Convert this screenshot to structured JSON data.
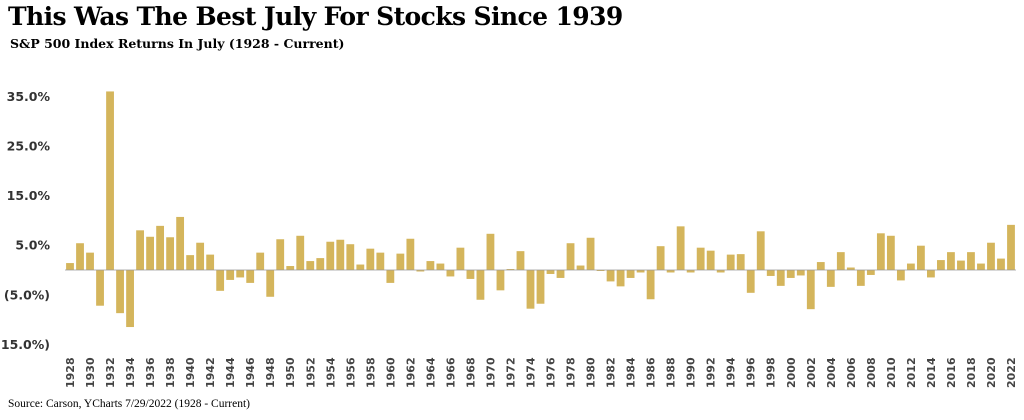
{
  "title": "This Was The Best July For Stocks Since 1939",
  "subtitle": "S&P 500 Index Returns In July (1928 - Current)",
  "source": "Source: Carson, YCharts 7/29/2022  (1928 - Current)",
  "colors": {
    "bar": "#D4B55C",
    "zero_line": "#999999",
    "text": "#000000"
  },
  "chart_data": {
    "type": "bar",
    "title": "This Was The Best July For Stocks Since 1939",
    "subtitle": "S&P 500 Index Returns In July (1928 - Current)",
    "xlabel": "",
    "ylabel": "",
    "ylim": [
      -15,
      37
    ],
    "grid": false,
    "legend": "none",
    "y_ticks": [
      35,
      25,
      15,
      5,
      -5,
      -15
    ],
    "y_tick_labels": [
      "35.0%",
      "25.0%",
      "15.0%",
      "5.0%",
      "(5.0%)",
      "(15.0%)"
    ],
    "x_tick_labels": [
      "1928",
      "1930",
      "1932",
      "1934",
      "1936",
      "1938",
      "1940",
      "1942",
      "1944",
      "1946",
      "1948",
      "1950",
      "1952",
      "1954",
      "1956",
      "1958",
      "1960",
      "1962",
      "1964",
      "1966",
      "1968",
      "1970",
      "1972",
      "1974",
      "1976",
      "1978",
      "1980",
      "1982",
      "1984",
      "1986",
      "1988",
      "1990",
      "1992",
      "1994",
      "1996",
      "1998",
      "2000",
      "2002",
      "2004",
      "2006",
      "2008",
      "2010",
      "2012",
      "2014",
      "2016",
      "2018",
      "2020",
      "2022"
    ],
    "categories": [
      1928,
      1929,
      1930,
      1931,
      1932,
      1933,
      1934,
      1935,
      1936,
      1937,
      1938,
      1939,
      1940,
      1941,
      1942,
      1943,
      1944,
      1945,
      1946,
      1947,
      1948,
      1949,
      1950,
      1951,
      1952,
      1953,
      1954,
      1955,
      1956,
      1957,
      1958,
      1959,
      1960,
      1961,
      1962,
      1963,
      1964,
      1965,
      1966,
      1967,
      1968,
      1969,
      1970,
      1971,
      1972,
      1973,
      1974,
      1975,
      1976,
      1977,
      1978,
      1979,
      1980,
      1981,
      1982,
      1983,
      1984,
      1985,
      1986,
      1987,
      1988,
      1989,
      1990,
      1991,
      1992,
      1993,
      1994,
      1995,
      1996,
      1997,
      1998,
      1999,
      2000,
      2001,
      2002,
      2003,
      2004,
      2005,
      2006,
      2007,
      2008,
      2009,
      2010,
      2011,
      2012,
      2013,
      2014,
      2015,
      2016,
      2017,
      2018,
      2019,
      2020,
      2021,
      2022
    ],
    "values": [
      1.4,
      5.4,
      3.5,
      -7.2,
      36.0,
      -8.7,
      -11.5,
      8.0,
      6.7,
      8.9,
      6.6,
      10.7,
      3.0,
      5.5,
      3.1,
      -4.2,
      -2.0,
      -1.5,
      -2.6,
      3.5,
      -5.4,
      6.2,
      0.8,
      6.9,
      1.8,
      2.4,
      5.7,
      6.1,
      5.2,
      1.1,
      4.3,
      3.5,
      -2.6,
      3.3,
      6.3,
      -0.3,
      1.8,
      1.3,
      -1.3,
      4.5,
      -1.8,
      -6.0,
      7.3,
      -4.1,
      0.2,
      3.8,
      -7.8,
      -6.8,
      -0.8,
      -1.6,
      5.4,
      0.9,
      6.5,
      -0.2,
      -2.3,
      -3.3,
      -1.6,
      -0.5,
      -5.9,
      4.8,
      -0.5,
      8.8,
      -0.5,
      4.5,
      3.9,
      -0.5,
      3.1,
      3.2,
      -4.6,
      7.8,
      -1.2,
      -3.2,
      -1.6,
      -1.1,
      -7.9,
      1.6,
      -3.4,
      3.6,
      0.5,
      -3.2,
      -1.0,
      7.4,
      6.9,
      -2.1,
      1.3,
      4.9,
      -1.5,
      2.0,
      3.6,
      1.9,
      3.6,
      1.3,
      5.5,
      2.3,
      9.1
    ]
  }
}
